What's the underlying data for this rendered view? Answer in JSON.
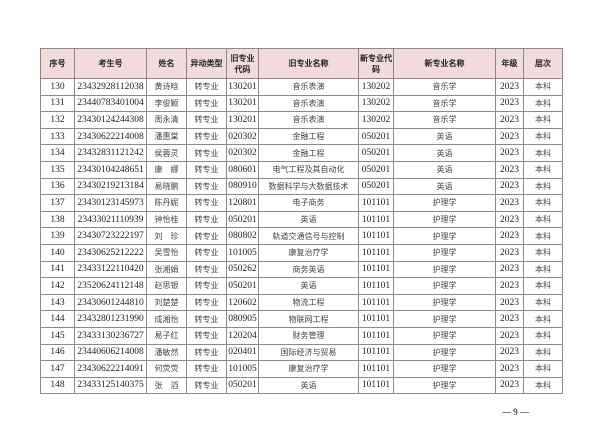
{
  "table": {
    "headers": [
      "序号",
      "考生号",
      "姓名",
      "异动类型",
      "旧专业代码",
      "旧专业名称",
      "新专业代码",
      "新专业名称",
      "年级",
      "层次"
    ],
    "rows": [
      [
        "130",
        "23432928112038",
        "黄诗晗",
        "转专业",
        "130201",
        "音乐表演",
        "130202",
        "音乐学",
        "2023",
        "本科"
      ],
      [
        "131",
        "23440783401004",
        "李俊颖",
        "转专业",
        "130201",
        "音乐表演",
        "130202",
        "音乐学",
        "2023",
        "本科"
      ],
      [
        "132",
        "23430124244308",
        "周永清",
        "转专业",
        "130201",
        "音乐表演",
        "130202",
        "音乐学",
        "2023",
        "本科"
      ],
      [
        "133",
        "23430622214008",
        "潘惠棠",
        "转专业",
        "020302",
        "金融工程",
        "050201",
        "英语",
        "2023",
        "本科"
      ],
      [
        "134",
        "23432831121242",
        "侯蓉灵",
        "转专业",
        "020302",
        "金融工程",
        "050201",
        "英语",
        "2023",
        "本科"
      ],
      [
        "135",
        "23430104248651",
        "康　娜",
        "转专业",
        "080601",
        "电气工程及其自动化",
        "050201",
        "英语",
        "2023",
        "本科"
      ],
      [
        "136",
        "23430219213184",
        "易晓鹏",
        "转专业",
        "080910",
        "数据科学与大数据技术",
        "050201",
        "英语",
        "2023",
        "本科"
      ],
      [
        "137",
        "23430123145973",
        "陈丹妮",
        "转专业",
        "120801",
        "电子商务",
        "101101",
        "护理学",
        "2023",
        "本科"
      ],
      [
        "138",
        "23433021110939",
        "钟怡桂",
        "转专业",
        "050201",
        "英语",
        "101101",
        "护理学",
        "2023",
        "本科"
      ],
      [
        "139",
        "23430723222197",
        "刘　珍",
        "转专业",
        "080802",
        "轨道交通信号与控制",
        "101101",
        "护理学",
        "2023",
        "本科"
      ],
      [
        "140",
        "23430625212222",
        "吴雪怡",
        "转专业",
        "101005",
        "康复治疗学",
        "101101",
        "护理学",
        "2023",
        "本科"
      ],
      [
        "141",
        "23433122110420",
        "张湘娟",
        "转专业",
        "050262",
        "商务英语",
        "101101",
        "护理学",
        "2023",
        "本科"
      ],
      [
        "142",
        "23520624112148",
        "赵思银",
        "转专业",
        "050201",
        "英语",
        "101101",
        "护理学",
        "2023",
        "本科"
      ],
      [
        "143",
        "23430601244810",
        "刘楚楚",
        "转专业",
        "120602",
        "物流工程",
        "101101",
        "护理学",
        "2023",
        "本科"
      ],
      [
        "144",
        "23432801231990",
        "成湘怡",
        "转专业",
        "080905",
        "物联网工程",
        "101101",
        "护理学",
        "2023",
        "本科"
      ],
      [
        "145",
        "23433130236727",
        "易子红",
        "转专业",
        "120204",
        "财务管理",
        "101101",
        "护理学",
        "2023",
        "本科"
      ],
      [
        "146",
        "23440606214008",
        "潘敏然",
        "转专业",
        "020401",
        "国际经济与贸易",
        "101101",
        "护理学",
        "2023",
        "本科"
      ],
      [
        "147",
        "23430622214091",
        "何荧荧",
        "转专业",
        "101005",
        "康复治疗学",
        "101101",
        "护理学",
        "2023",
        "本科"
      ],
      [
        "148",
        "23433125140375",
        "张　滔",
        "转专业",
        "050201",
        "英语",
        "101101",
        "护理学",
        "2023",
        "本科"
      ]
    ]
  },
  "page_number": "— 9 —"
}
